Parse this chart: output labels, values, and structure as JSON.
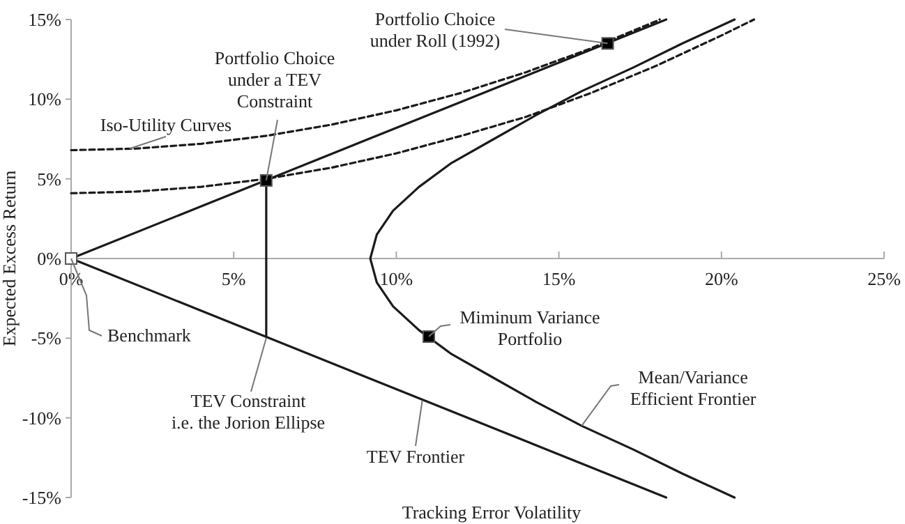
{
  "chart_data": {
    "type": "line",
    "xlabel": "Tracking Error Volatility",
    "ylabel": "Expected Excess Return",
    "xlim": [
      0,
      25
    ],
    "ylim": [
      -15,
      15
    ],
    "xticks": [
      {
        "value": 0,
        "label": "0%"
      },
      {
        "value": 5,
        "label": "5%"
      },
      {
        "value": 10,
        "label": "10%"
      },
      {
        "value": 15,
        "label": "15%"
      },
      {
        "value": 20,
        "label": "20%"
      },
      {
        "value": 25,
        "label": "25%"
      }
    ],
    "yticks": [
      {
        "value": -15,
        "label": "-15%"
      },
      {
        "value": -10,
        "label": "-10%"
      },
      {
        "value": -5,
        "label": "-5%"
      },
      {
        "value": 0,
        "label": "0%"
      },
      {
        "value": 5,
        "label": "5%"
      },
      {
        "value": 10,
        "label": "10%"
      },
      {
        "value": 15,
        "label": "15%"
      }
    ],
    "grid": false,
    "series": [
      {
        "color": "#1a1a1a",
        "marker": "none",
        "line_style": "solid",
        "x": [
          18.3,
          0,
          18.3
        ],
        "values": [
          15,
          0,
          -15
        ]
      },
      {
        "color": "#1a1a1a",
        "marker": "none",
        "line_style": "solid",
        "x": [
          6,
          6
        ],
        "values": [
          4.9,
          -4.9
        ]
      },
      {
        "color": "#1a1a1a",
        "marker": "none",
        "line_style": "solid",
        "x": [
          20.4,
          18.8,
          17.3,
          15.7,
          14.3,
          13.0,
          11.7,
          10.7,
          9.9,
          9.4,
          9.2,
          9.4,
          9.9,
          10.7,
          11.7,
          13.0,
          14.3,
          15.7,
          17.3,
          18.8,
          20.4
        ],
        "values": [
          -15,
          -13.5,
          -12,
          -10.5,
          -9,
          -7.5,
          -6,
          -4.5,
          -3,
          -1.5,
          0,
          1.5,
          3,
          4.5,
          6,
          7.5,
          9,
          10.5,
          12,
          13.5,
          15
        ]
      },
      {
        "color": "#1a1a1a",
        "marker": "none",
        "line_style": "dashed",
        "x": [
          0,
          2,
          4,
          6,
          8,
          10,
          12,
          14,
          16,
          18,
          18.1
        ],
        "values": [
          6.8,
          6.9,
          7.2,
          7.7,
          8.4,
          9.3,
          10.4,
          11.7,
          13.2,
          14.9,
          15
        ]
      },
      {
        "color": "#1a1a1a",
        "marker": "none",
        "line_style": "dashed",
        "x": [
          0,
          2,
          4,
          6,
          8,
          10,
          12,
          14,
          16,
          18,
          20,
          21
        ],
        "values": [
          4.1,
          4.2,
          4.5,
          5.0,
          5.7,
          6.6,
          7.7,
          8.9,
          10.4,
          12.1,
          14.0,
          15
        ]
      },
      {
        "type": "scatter",
        "color": "#ffffff",
        "marker": "square",
        "x": [
          0
        ],
        "values": [
          0
        ]
      },
      {
        "type": "scatter",
        "color": "#000000",
        "marker": "square",
        "x": [
          6,
          16.5,
          11
        ],
        "values": [
          4.9,
          13.5,
          -4.9
        ]
      }
    ],
    "annotations": [
      {
        "text": "Portfolio Choice\nunder Roll (1992)",
        "x": 16.5,
        "y": 13.5
      },
      {
        "text": "Portfolio Choice\nunder a TEV\nConstraint",
        "x": 6,
        "y": 4.9
      },
      {
        "text": "Iso-Utility Curves",
        "x": 1.8,
        "y": 6.9
      },
      {
        "text": "Benchmark",
        "x": 0,
        "y": 0
      },
      {
        "text": "TEV Constraint\ni.e. the Jorion Ellipse",
        "x": 6,
        "y": -5
      },
      {
        "text": "Miminum Variance\nPortfolio",
        "x": 11,
        "y": -4.9
      },
      {
        "text": "Mean/Variance\nEfficient Frontier",
        "x": 15.7,
        "y": -10.5
      },
      {
        "text": "TEV Frontier",
        "x": 10.8,
        "y": -8.9
      }
    ]
  }
}
